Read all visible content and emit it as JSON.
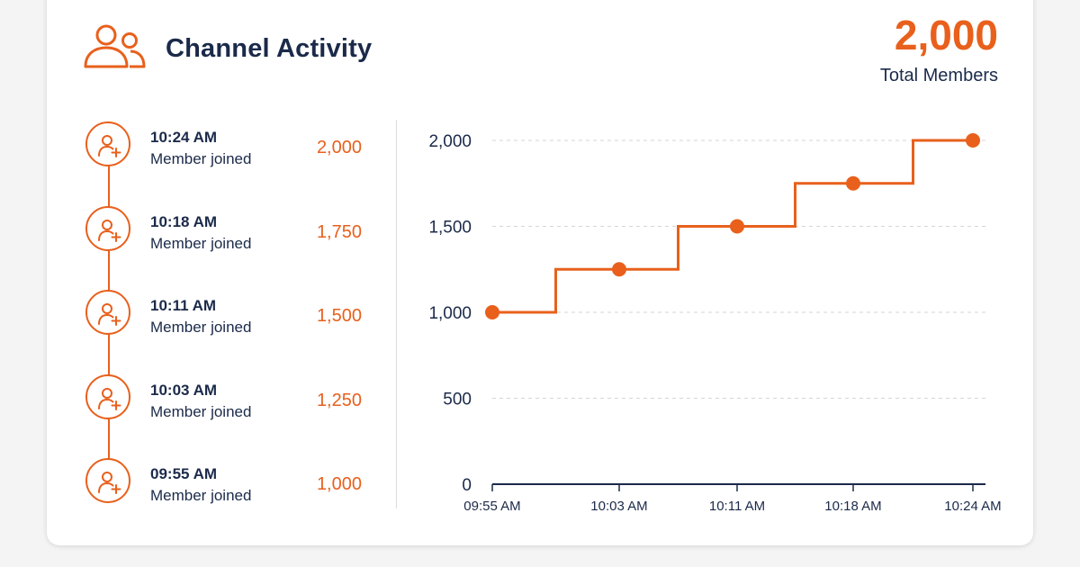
{
  "header": {
    "title": "Channel Activity",
    "icon": "users-icon",
    "total_value": "2,000",
    "total_label": "Total Members"
  },
  "timeline": {
    "items": [
      {
        "time": "10:24 AM",
        "description": "Member joined",
        "count": "2,000",
        "icon": "user-plus-icon"
      },
      {
        "time": "10:18 AM",
        "description": "Member joined",
        "count": "1,750",
        "icon": "user-plus-icon"
      },
      {
        "time": "10:11 AM",
        "description": "Member joined",
        "count": "1,500",
        "icon": "user-plus-icon"
      },
      {
        "time": "10:03 AM",
        "description": "Member joined",
        "count": "1,250",
        "icon": "user-plus-icon"
      },
      {
        "time": "09:55 AM",
        "description": "Member joined",
        "count": "1,000",
        "icon": "user-plus-icon"
      }
    ]
  },
  "colors": {
    "accent": "#e8601c",
    "text": "#1b2a4a"
  },
  "chart_data": {
    "type": "line",
    "step": true,
    "x": [
      "09:55 AM",
      "10:03 AM",
      "10:11 AM",
      "10:18 AM",
      "10:24 AM"
    ],
    "series": [
      {
        "values": [
          1000,
          1250,
          1500,
          1750,
          2000
        ]
      }
    ],
    "y_ticks": [
      0,
      500,
      1000,
      1500,
      2000
    ],
    "y_tick_labels": [
      "0",
      "500",
      "1,000",
      "1,500",
      "2,000"
    ],
    "ylim": [
      0,
      2000
    ],
    "grid": true,
    "legend": "none"
  }
}
